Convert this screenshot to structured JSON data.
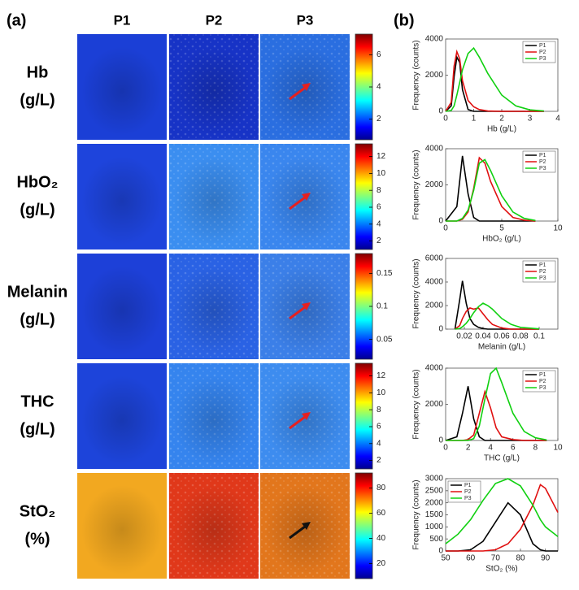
{
  "panel_a": "(a)",
  "panel_b": "(b)",
  "columns": [
    "P1",
    "P2",
    "P3"
  ],
  "rows": [
    {
      "label": "Hb",
      "unit": "(g/L)"
    },
    {
      "label": "HbO₂",
      "unit": "(g/L)"
    },
    {
      "label": "Melanin",
      "unit": "(g/L)"
    },
    {
      "label": "THC",
      "unit": "(g/L)"
    },
    {
      "label": "StO₂",
      "unit": "(%)"
    }
  ],
  "colorbars": [
    {
      "clim": [
        0.7,
        7.3
      ],
      "ticks": [
        2,
        4,
        6
      ]
    },
    {
      "clim": [
        1,
        13.5
      ],
      "ticks": [
        2,
        4,
        6,
        8,
        10,
        12
      ]
    },
    {
      "clim": [
        0.02,
        0.18
      ],
      "ticks": [
        0.05,
        0.1,
        0.15
      ]
    },
    {
      "clim": [
        1,
        13.5
      ],
      "ticks": [
        2,
        4,
        6,
        8,
        10,
        12
      ]
    },
    {
      "clim": [
        8,
        92
      ],
      "ticks": [
        20,
        40,
        60,
        80
      ]
    }
  ],
  "chart_data": [
    {
      "type": "line",
      "xlabel": "Hb (g/L)",
      "ylabel": "Frequency (counts)",
      "legend": "upper right",
      "x": [
        0,
        0.2,
        0.3,
        0.4,
        0.5,
        0.6,
        0.8,
        1,
        1.2,
        1.5,
        2,
        2.5,
        3,
        3.5
      ],
      "xlim": [
        0,
        4
      ],
      "xticks": [
        0,
        1,
        2,
        3,
        4
      ],
      "ylim": [
        0,
        4000
      ],
      "yticks": [
        0,
        2000,
        4000
      ],
      "series": [
        {
          "name": "P1",
          "color": "#000000",
          "values": [
            0,
            300,
            1900,
            3000,
            2700,
            1200,
            100,
            0,
            0,
            0,
            0,
            0,
            0,
            0
          ]
        },
        {
          "name": "P2",
          "color": "#e01010",
          "values": [
            0,
            500,
            2500,
            3300,
            2900,
            1700,
            600,
            250,
            100,
            20,
            0,
            0,
            0,
            0
          ]
        },
        {
          "name": "P3",
          "color": "#10d010",
          "values": [
            0,
            50,
            300,
            900,
            1600,
            2300,
            3200,
            3500,
            3000,
            2100,
            900,
            300,
            80,
            20
          ]
        }
      ]
    },
    {
      "type": "line",
      "xlabel": "HbO₂ (g/L)",
      "ylabel": "Frequency (counts)",
      "legend": "upper right",
      "x": [
        0,
        1,
        1.5,
        2,
        2.5,
        3,
        3.5,
        4,
        5,
        6,
        7,
        8
      ],
      "xlim": [
        0,
        10
      ],
      "xticks": [
        0,
        5,
        10
      ],
      "ylim": [
        0,
        4000
      ],
      "yticks": [
        0,
        2000,
        4000
      ],
      "series": [
        {
          "name": "P1",
          "color": "#000000",
          "values": [
            0,
            800,
            3600,
            1500,
            200,
            0,
            0,
            0,
            0,
            0,
            0,
            0
          ]
        },
        {
          "name": "P2",
          "color": "#e01010",
          "values": [
            0,
            0,
            100,
            500,
            1800,
            3500,
            3200,
            2200,
            800,
            200,
            50,
            0
          ]
        },
        {
          "name": "P3",
          "color": "#10d010",
          "values": [
            0,
            0,
            150,
            600,
            1700,
            3200,
            3400,
            2800,
            1400,
            500,
            150,
            30
          ]
        }
      ]
    },
    {
      "type": "line",
      "xlabel": "Melanin (g/L)",
      "ylabel": "Frequency (counts)",
      "legend": "upper right",
      "x": [
        0.01,
        0.015,
        0.018,
        0.022,
        0.026,
        0.03,
        0.035,
        0.04,
        0.045,
        0.05,
        0.06,
        0.07,
        0.08,
        0.1
      ],
      "xlim": [
        0,
        0.12
      ],
      "xticks": [
        0.02,
        0.04,
        0.06,
        0.08,
        0.1
      ],
      "ylim": [
        0,
        6000
      ],
      "yticks": [
        0,
        2000,
        4000,
        6000
      ],
      "series": [
        {
          "name": "P1",
          "color": "#000000",
          "values": [
            0,
            2500,
            4100,
            2200,
            900,
            400,
            150,
            50,
            0,
            0,
            0,
            0,
            0,
            0
          ]
        },
        {
          "name": "P2",
          "color": "#e01010",
          "values": [
            0,
            300,
            900,
            1500,
            1800,
            1700,
            1800,
            1300,
            800,
            400,
            100,
            0,
            0,
            0
          ]
        },
        {
          "name": "P3",
          "color": "#10d010",
          "values": [
            0,
            50,
            200,
            500,
            900,
            1400,
            1900,
            2200,
            2000,
            1700,
            900,
            400,
            150,
            20
          ]
        }
      ]
    },
    {
      "type": "line",
      "xlabel": "THC (g/L)",
      "ylabel": "Frequency (counts)",
      "legend": "upper right",
      "x": [
        0,
        1,
        1.5,
        2,
        2.5,
        3,
        3.5,
        4,
        4.5,
        5,
        6,
        7,
        8,
        9
      ],
      "xlim": [
        0,
        10
      ],
      "xticks": [
        0,
        2,
        4,
        6,
        8,
        10
      ],
      "ylim": [
        0,
        4000
      ],
      "yticks": [
        0,
        2000,
        4000
      ],
      "series": [
        {
          "name": "P1",
          "color": "#000000",
          "values": [
            0,
            200,
            1500,
            3000,
            1200,
            200,
            0,
            0,
            0,
            0,
            0,
            0,
            0,
            0
          ]
        },
        {
          "name": "P2",
          "color": "#e01010",
          "values": [
            0,
            0,
            0,
            50,
            300,
            1500,
            2700,
            1800,
            700,
            200,
            50,
            0,
            0,
            0
          ]
        },
        {
          "name": "P3",
          "color": "#10d010",
          "values": [
            0,
            0,
            0,
            0,
            100,
            800,
            2300,
            3700,
            4000,
            3200,
            1500,
            500,
            150,
            30
          ]
        }
      ]
    },
    {
      "type": "line",
      "xlabel": "StO₂ (%)",
      "ylabel": "Frequency (counts)",
      "legend": "upper left",
      "x": [
        50,
        55,
        60,
        65,
        70,
        75,
        80,
        85,
        88,
        90,
        95
      ],
      "xlim": [
        50,
        95
      ],
      "xticks": [
        50,
        60,
        70,
        80,
        90
      ],
      "ylim": [
        0,
        3000
      ],
      "yticks": [
        0,
        500,
        1000,
        1500,
        2000,
        2500,
        3000
      ],
      "series": [
        {
          "name": "P1",
          "color": "#000000",
          "values": [
            0,
            0,
            50,
            400,
            1200,
            2000,
            1500,
            300,
            50,
            0,
            0
          ]
        },
        {
          "name": "P2",
          "color": "#e01010",
          "values": [
            0,
            0,
            0,
            0,
            50,
            300,
            900,
            1900,
            2750,
            2600,
            1600
          ]
        },
        {
          "name": "P3",
          "color": "#10d010",
          "values": [
            300,
            700,
            1300,
            2100,
            2800,
            3000,
            2700,
            1900,
            1300,
            1000,
            600
          ]
        }
      ]
    }
  ]
}
